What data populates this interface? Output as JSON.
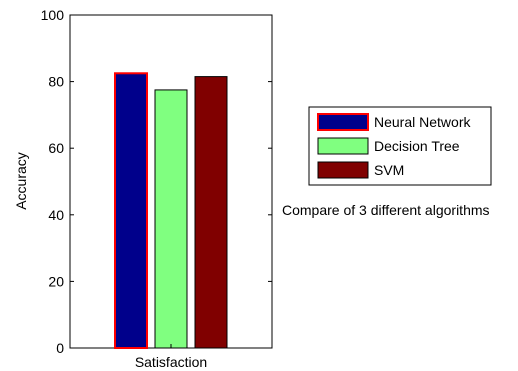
{
  "chart_data": {
    "type": "bar",
    "categories": [
      "Satisfaction"
    ],
    "series": [
      {
        "name": "Neural Network",
        "values": [
          82.5
        ],
        "color": "#00008B",
        "edge": "#ff0000"
      },
      {
        "name": "Decision Tree",
        "values": [
          77.5
        ],
        "color": "#80FF80",
        "edge": "#000000"
      },
      {
        "name": "SVM",
        "values": [
          81.5
        ],
        "color": "#800000",
        "edge": "#000000"
      }
    ],
    "xlabel": "",
    "ylabel": "Accuracy",
    "ylim": [
      0,
      100
    ],
    "yticks": [
      "0",
      "20",
      "40",
      "60",
      "80",
      "100"
    ],
    "legend_position": "right",
    "annotation": "Compare of 3 different algorithms",
    "grid": false
  }
}
